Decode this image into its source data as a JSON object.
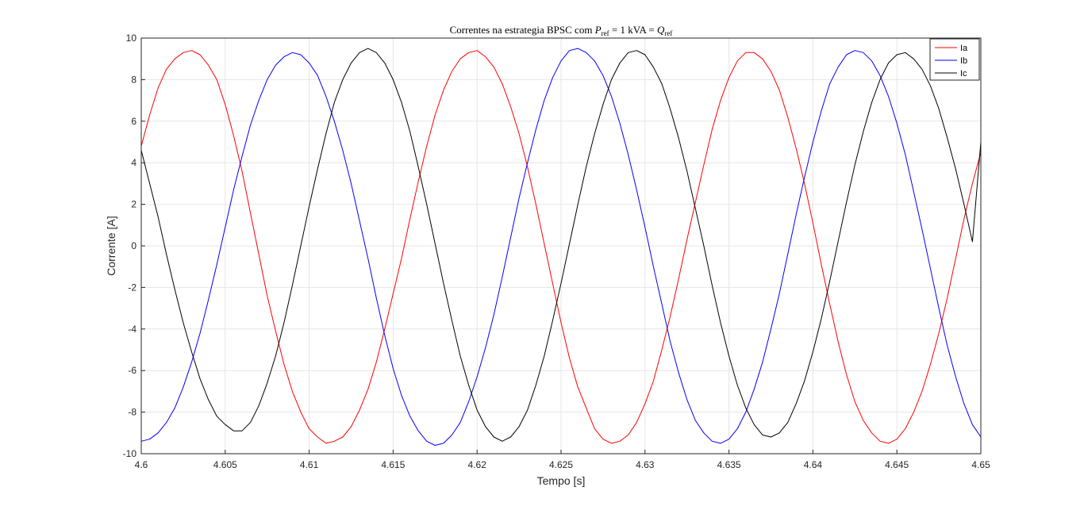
{
  "chart_data": {
    "type": "line",
    "title": {
      "prefix": "Correntes na estrategia BPSC com ",
      "p_var": "P",
      "ref_sub": "ref",
      "middle": " = 1 kVA = ",
      "q_var": "Q"
    },
    "xlabel": "Tempo [s]",
    "ylabel": "Corrente [A]",
    "xlim": [
      4.6,
      4.65
    ],
    "ylim": [
      -10,
      10
    ],
    "x_ticks": [
      "4.6",
      "4.605",
      "4.61",
      "4.615",
      "4.62",
      "4.625",
      "4.63",
      "4.635",
      "4.64",
      "4.645",
      "4.65"
    ],
    "y_ticks": [
      "10",
      "8",
      "6",
      "4",
      "2",
      "0",
      "-2",
      "-4",
      "-6",
      "-8",
      "-10"
    ],
    "grid": true,
    "legend_position": "top-right",
    "series": [
      {
        "name": "Ia",
        "color": "#ff0000",
        "x": [
          4.6,
          4.6005,
          4.601,
          4.6015,
          4.602,
          4.6025,
          4.603,
          4.6035,
          4.604,
          4.6045,
          4.605,
          4.6055,
          4.606,
          4.6065,
          4.607,
          4.6075,
          4.608,
          4.6085,
          4.609,
          4.6095,
          4.61,
          4.6105,
          4.611,
          4.6115,
          4.612,
          4.6125,
          4.613,
          4.6135,
          4.614,
          4.6145,
          4.615,
          4.6155,
          4.616,
          4.6165,
          4.617,
          4.6175,
          4.618,
          4.6185,
          4.619,
          4.6195,
          4.62,
          4.6205,
          4.621,
          4.6215,
          4.622,
          4.6225,
          4.623,
          4.6235,
          4.624,
          4.6245,
          4.625,
          4.6255,
          4.626,
          4.6265,
          4.627,
          4.6275,
          4.628,
          4.6285,
          4.629,
          4.6295,
          4.63,
          4.6305,
          4.631,
          4.6315,
          4.632,
          4.6325,
          4.633,
          4.6335,
          4.634,
          4.6345,
          4.635,
          4.6355,
          4.636,
          4.6365,
          4.637,
          4.6375,
          4.638,
          4.6385,
          4.639,
          4.6395,
          4.64,
          4.6405,
          4.641,
          4.6415,
          4.642,
          4.6425,
          4.643,
          4.6435,
          4.644,
          4.6445,
          4.645,
          4.6455,
          4.646,
          4.6465,
          4.647,
          4.6475,
          4.648,
          4.6485,
          4.649,
          4.6495,
          4.65
        ],
        "values": [
          4.8,
          6.3,
          7.6,
          8.5,
          9.0,
          9.3,
          9.4,
          9.2,
          8.7,
          8.0,
          6.8,
          5.3,
          3.6,
          1.6,
          -0.4,
          -2.4,
          -4.1,
          -5.7,
          -7.0,
          -8.0,
          -8.8,
          -9.2,
          -9.5,
          -9.4,
          -9.2,
          -8.7,
          -7.9,
          -6.9,
          -5.6,
          -4.0,
          -2.3,
          -0.6,
          1.3,
          3.1,
          4.8,
          6.3,
          7.5,
          8.4,
          9.0,
          9.3,
          9.4,
          9.1,
          8.6,
          7.8,
          6.7,
          5.4,
          3.8,
          2.0,
          0.1,
          -1.8,
          -3.7,
          -5.4,
          -6.8,
          -7.8,
          -8.8,
          -9.3,
          -9.5,
          -9.4,
          -9.1,
          -8.5,
          -7.6,
          -6.5,
          -5.0,
          -3.4,
          -1.6,
          0.3,
          2.1,
          3.9,
          5.6,
          7.0,
          8.1,
          8.9,
          9.3,
          9.3,
          9.0,
          8.4,
          7.5,
          6.2,
          4.7,
          3.0,
          1.1,
          -0.9,
          -2.8,
          -4.6,
          -6.2,
          -7.5,
          -8.4,
          -9.0,
          -9.4,
          -9.5,
          -9.3,
          -8.8,
          -8.0,
          -7.0,
          -5.7,
          -4.2,
          -2.5,
          -0.6,
          1.3,
          3.0,
          4.5
        ]
      },
      {
        "name": "Ib",
        "color": "#0000ff",
        "x": [
          4.6,
          4.6005,
          4.601,
          4.6015,
          4.602,
          4.6025,
          4.603,
          4.6035,
          4.604,
          4.6045,
          4.605,
          4.6055,
          4.606,
          4.6065,
          4.607,
          4.6075,
          4.608,
          4.6085,
          4.609,
          4.6095,
          4.61,
          4.6105,
          4.611,
          4.6115,
          4.612,
          4.6125,
          4.613,
          4.6135,
          4.614,
          4.6145,
          4.615,
          4.6155,
          4.616,
          4.6165,
          4.617,
          4.6175,
          4.618,
          4.6185,
          4.619,
          4.6195,
          4.62,
          4.6205,
          4.621,
          4.6215,
          4.622,
          4.6225,
          4.623,
          4.6235,
          4.624,
          4.6245,
          4.625,
          4.6255,
          4.626,
          4.6265,
          4.627,
          4.6275,
          4.628,
          4.6285,
          4.629,
          4.6295,
          4.63,
          4.6305,
          4.631,
          4.6315,
          4.632,
          4.6325,
          4.633,
          4.6335,
          4.634,
          4.6345,
          4.635,
          4.6355,
          4.636,
          4.6365,
          4.637,
          4.6375,
          4.638,
          4.6385,
          4.639,
          4.6395,
          4.64,
          4.6405,
          4.641,
          4.6415,
          4.642,
          4.6425,
          4.643,
          4.6435,
          4.644,
          4.6445,
          4.645,
          4.6455,
          4.646,
          4.6465,
          4.647,
          4.6475,
          4.648,
          4.6485,
          4.649,
          4.6495,
          4.65
        ],
        "values": [
          -9.4,
          -9.3,
          -9.0,
          -8.5,
          -7.8,
          -6.8,
          -5.6,
          -4.2,
          -2.6,
          -0.9,
          0.9,
          2.7,
          4.3,
          5.8,
          7.0,
          8.0,
          8.7,
          9.1,
          9.3,
          9.2,
          8.8,
          8.2,
          7.2,
          6.0,
          4.6,
          3.0,
          1.2,
          -0.6,
          -2.5,
          -4.3,
          -5.9,
          -7.2,
          -8.2,
          -8.9,
          -9.4,
          -9.6,
          -9.5,
          -9.1,
          -8.5,
          -7.5,
          -6.3,
          -4.9,
          -3.3,
          -1.5,
          0.4,
          2.3,
          4.0,
          5.6,
          7.0,
          8.1,
          8.9,
          9.4,
          9.5,
          9.3,
          8.9,
          8.2,
          7.2,
          5.9,
          4.4,
          2.7,
          0.9,
          -1.0,
          -2.8,
          -4.6,
          -6.1,
          -7.4,
          -8.4,
          -9.0,
          -9.4,
          -9.5,
          -9.3,
          -8.8,
          -8.0,
          -6.9,
          -5.6,
          -4.0,
          -2.3,
          -0.4,
          1.5,
          3.3,
          5.0,
          6.5,
          7.8,
          8.6,
          9.2,
          9.4,
          9.3,
          8.9,
          8.2,
          7.2,
          5.9,
          4.4,
          2.6,
          0.8,
          -1.1,
          -3.0,
          -4.8,
          -6.3,
          -7.6,
          -8.6,
          -9.2
        ]
      },
      {
        "name": "Ic",
        "color": "#000000",
        "x": [
          4.6,
          4.6005,
          4.601,
          4.6015,
          4.602,
          4.6025,
          4.603,
          4.6035,
          4.604,
          4.6045,
          4.605,
          4.6055,
          4.606,
          4.6065,
          4.607,
          4.6075,
          4.608,
          4.6085,
          4.609,
          4.6095,
          4.61,
          4.6105,
          4.611,
          4.6115,
          4.612,
          4.6125,
          4.613,
          4.6135,
          4.614,
          4.6145,
          4.615,
          4.6155,
          4.616,
          4.6165,
          4.617,
          4.6175,
          4.618,
          4.6185,
          4.619,
          4.6195,
          4.62,
          4.6205,
          4.621,
          4.6215,
          4.622,
          4.6225,
          4.623,
          4.6235,
          4.624,
          4.6245,
          4.625,
          4.6255,
          4.626,
          4.6265,
          4.627,
          4.6275,
          4.628,
          4.6285,
          4.629,
          4.6295,
          4.63,
          4.6305,
          4.631,
          4.6315,
          4.632,
          4.6325,
          4.633,
          4.6335,
          4.634,
          4.6345,
          4.635,
          4.6355,
          4.636,
          4.6365,
          4.637,
          4.6375,
          4.638,
          4.6385,
          4.639,
          4.6395,
          4.64,
          4.6405,
          4.641,
          4.6415,
          4.642,
          4.6425,
          4.643,
          4.6435,
          4.644,
          4.6445,
          4.645,
          4.6455,
          4.646,
          4.6465,
          4.647,
          4.6475,
          4.648,
          4.6485,
          4.649,
          4.6495,
          4.65
        ],
        "values": [
          4.6,
          3.0,
          1.4,
          -0.4,
          -2.1,
          -3.7,
          -5.1,
          -6.4,
          -7.4,
          -8.2,
          -8.6,
          -8.9,
          -8.9,
          -8.5,
          -7.7,
          -6.6,
          -5.3,
          -3.7,
          -1.9,
          0.0,
          1.9,
          3.7,
          5.4,
          6.9,
          8.0,
          8.8,
          9.3,
          9.5,
          9.3,
          8.8,
          8.0,
          6.9,
          5.5,
          3.8,
          2.0,
          0.1,
          -1.8,
          -3.6,
          -5.3,
          -6.7,
          -7.9,
          -8.7,
          -9.2,
          -9.4,
          -9.2,
          -8.7,
          -7.9,
          -6.7,
          -5.3,
          -3.6,
          -1.8,
          0.1,
          2.0,
          3.8,
          5.4,
          6.8,
          8.0,
          8.8,
          9.3,
          9.4,
          9.2,
          8.6,
          7.8,
          6.6,
          5.2,
          3.6,
          1.8,
          0.0,
          -1.9,
          -3.7,
          -5.3,
          -6.7,
          -7.8,
          -8.6,
          -9.1,
          -9.2,
          -9.0,
          -8.5,
          -7.6,
          -6.5,
          -5.1,
          -3.5,
          -1.7,
          0.2,
          2.1,
          3.9,
          5.5,
          6.9,
          8.0,
          8.8,
          9.2,
          9.3,
          9.0,
          8.5,
          7.7,
          6.6,
          5.2,
          3.7,
          2.0,
          0.2,
          5.0
        ]
      }
    ]
  }
}
